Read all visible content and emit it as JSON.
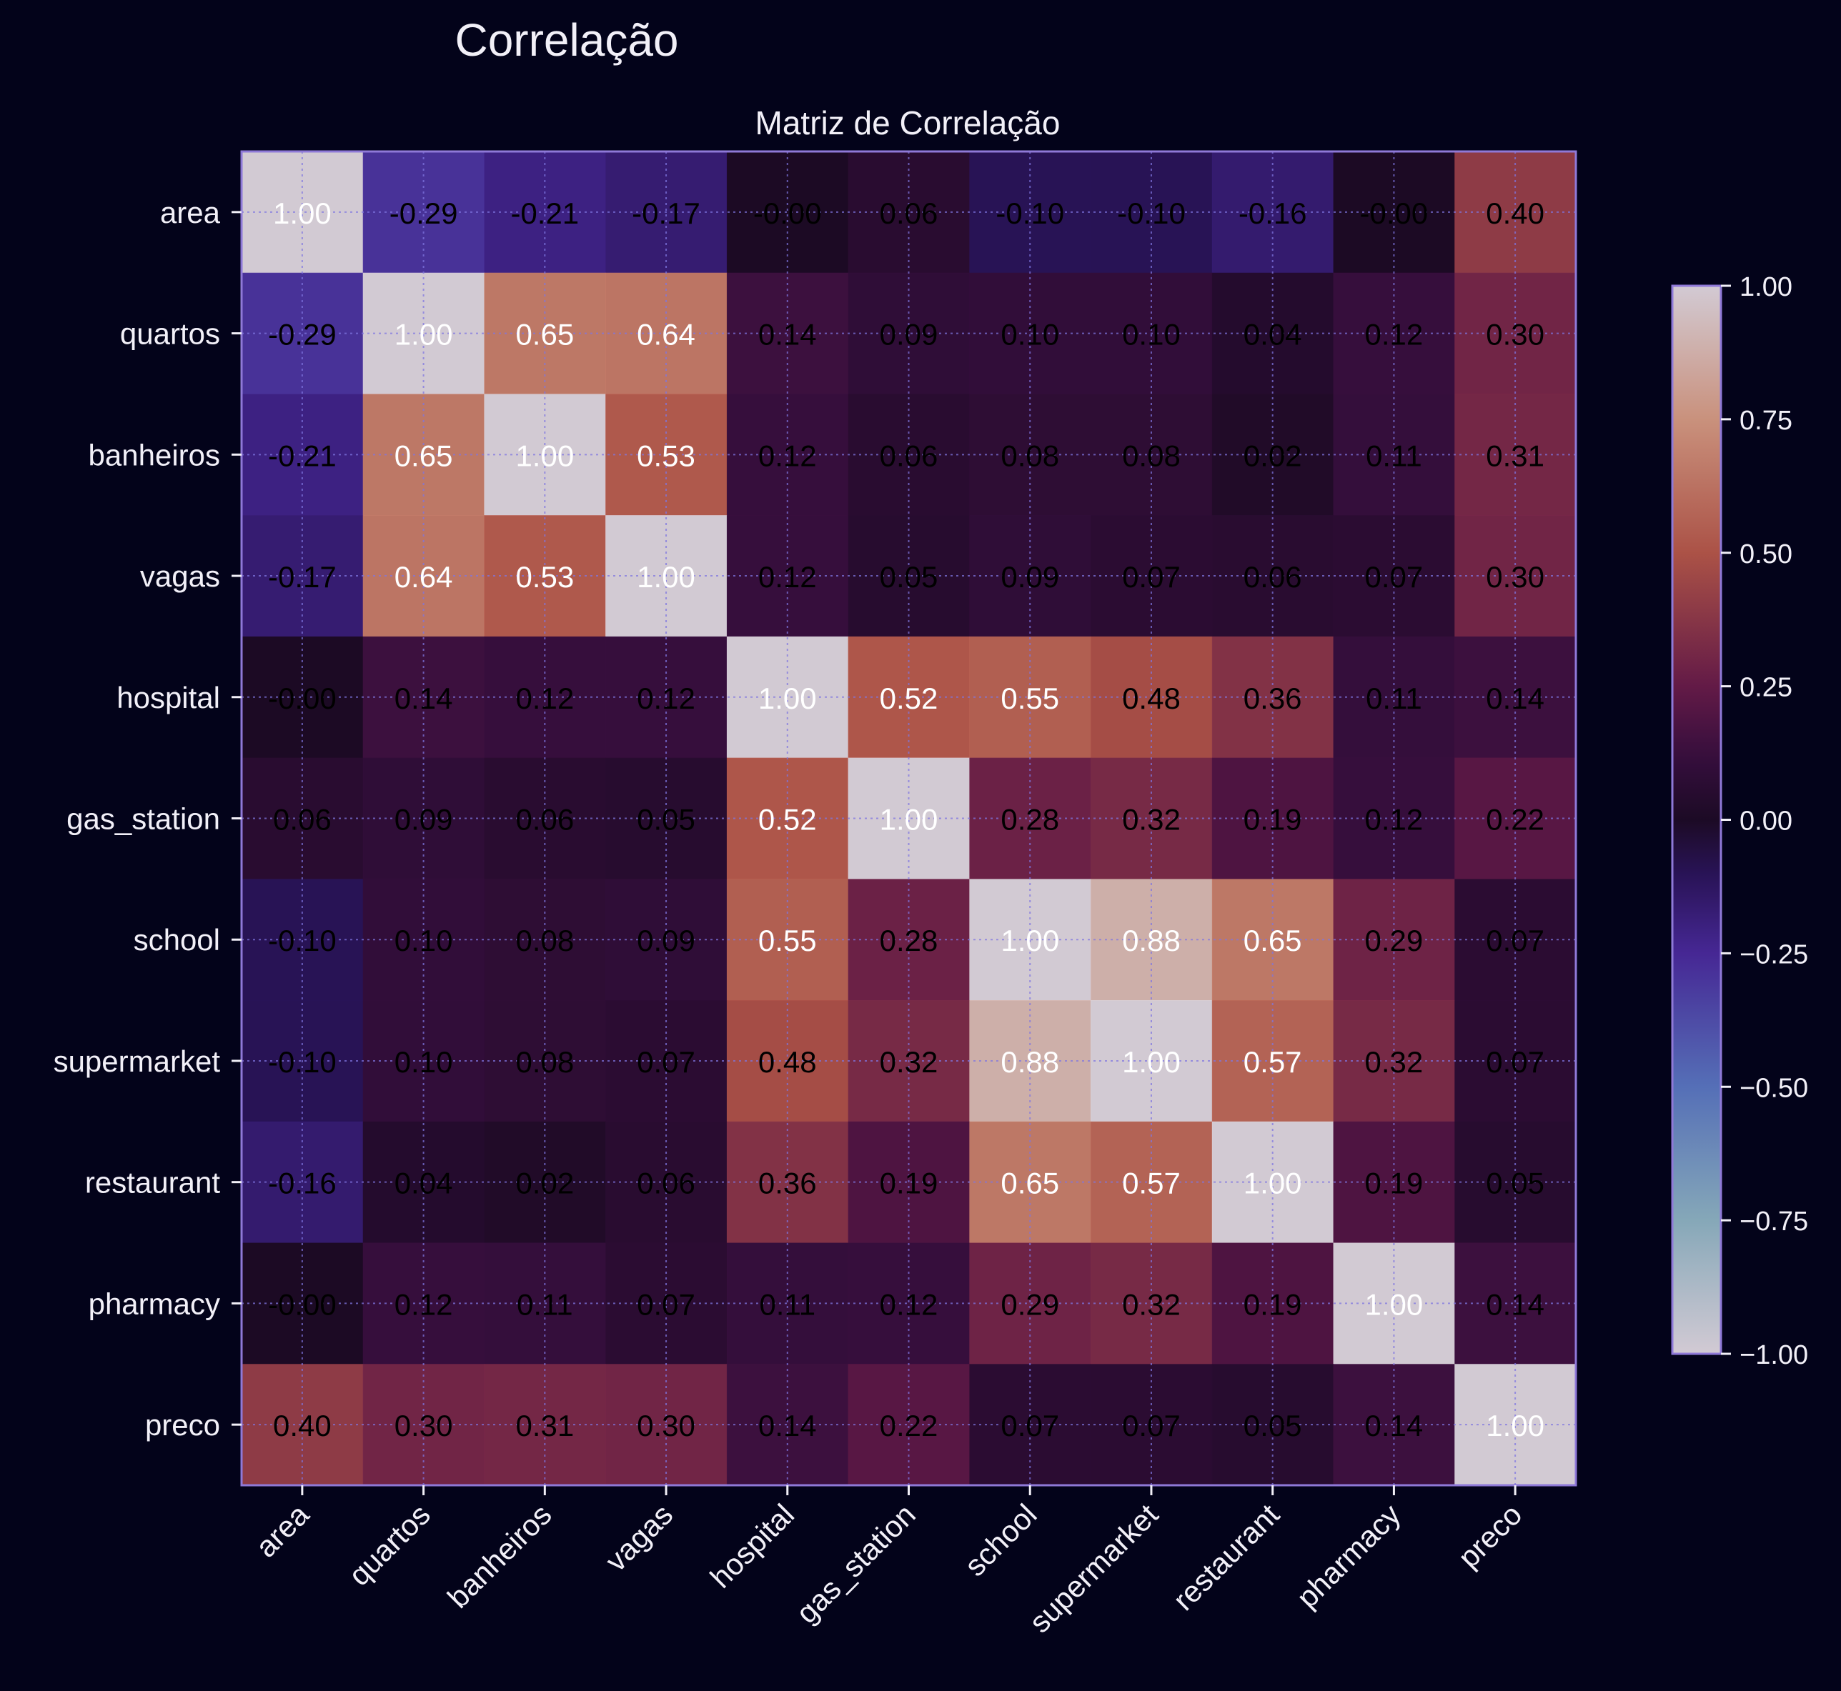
{
  "figure": {
    "suptitle": "Correlação",
    "background": "#03031a",
    "text_color": "#f2f0f8",
    "frame_color": "#8f79d8",
    "grid_color": "#7f76e0"
  },
  "chart_data": {
    "type": "heatmap",
    "title": "Matriz de Correlação",
    "xlabel": "",
    "ylabel": "",
    "grid": true,
    "value_format": "2 decimals",
    "variables": [
      "area",
      "quartos",
      "banheiros",
      "vagas",
      "hospital",
      "gas_station",
      "school",
      "supermarket",
      "restaurant",
      "pharmacy",
      "preco"
    ],
    "matrix": [
      [
        1.0,
        -0.29,
        -0.21,
        -0.17,
        -0.0,
        0.06,
        -0.1,
        -0.1,
        -0.16,
        -0.0,
        0.4
      ],
      [
        -0.29,
        1.0,
        0.65,
        0.64,
        0.14,
        0.09,
        0.1,
        0.1,
        0.04,
        0.12,
        0.3
      ],
      [
        -0.21,
        0.65,
        1.0,
        0.53,
        0.12,
        0.06,
        0.08,
        0.08,
        0.02,
        0.11,
        0.31
      ],
      [
        -0.17,
        0.64,
        0.53,
        1.0,
        0.12,
        0.05,
        0.09,
        0.07,
        0.06,
        0.07,
        0.3
      ],
      [
        -0.0,
        0.14,
        0.12,
        0.12,
        1.0,
        0.52,
        0.55,
        0.48,
        0.36,
        0.11,
        0.14
      ],
      [
        0.06,
        0.09,
        0.06,
        0.05,
        0.52,
        1.0,
        0.28,
        0.32,
        0.19,
        0.12,
        0.22
      ],
      [
        -0.1,
        0.1,
        0.08,
        0.09,
        0.55,
        0.28,
        1.0,
        0.88,
        0.65,
        0.29,
        0.07
      ],
      [
        -0.1,
        0.1,
        0.08,
        0.07,
        0.48,
        0.32,
        0.88,
        1.0,
        0.57,
        0.32,
        0.07
      ],
      [
        -0.16,
        0.04,
        0.02,
        0.06,
        0.36,
        0.19,
        0.65,
        0.57,
        1.0,
        0.19,
        0.05
      ],
      [
        -0.0,
        0.12,
        0.11,
        0.07,
        0.11,
        0.12,
        0.29,
        0.32,
        0.19,
        1.0,
        0.14
      ],
      [
        0.4,
        0.3,
        0.31,
        0.3,
        0.14,
        0.22,
        0.07,
        0.07,
        0.05,
        0.14,
        1.0
      ]
    ],
    "colorbar": {
      "range": [
        -1.0,
        1.0
      ],
      "ticks": [
        1.0,
        0.75,
        0.5,
        0.25,
        0.0,
        -0.25,
        -0.5,
        -0.75,
        -1.0
      ],
      "tick_labels": [
        "1.00",
        "0.75",
        "0.50",
        "0.25",
        "0.00",
        "−0.25",
        "−0.50",
        "−0.75",
        "−1.00"
      ]
    },
    "colormap": "twilight",
    "colormap_stops": [
      {
        "v": -1.0,
        "color": "#e2d9e2"
      },
      {
        "v": -0.75,
        "color": "#8fb4c4"
      },
      {
        "v": -0.5,
        "color": "#5b77c3"
      },
      {
        "v": -0.25,
        "color": "#4b2a9d"
      },
      {
        "v": -0.1,
        "color": "#2b145a"
      },
      {
        "v": 0.0,
        "color": "#1e0b26"
      },
      {
        "v": 0.12,
        "color": "#3a0f40"
      },
      {
        "v": 0.25,
        "color": "#6a1c4a"
      },
      {
        "v": 0.5,
        "color": "#b8584a"
      },
      {
        "v": 0.75,
        "color": "#d89c84"
      },
      {
        "v": 1.0,
        "color": "#e2d9e2"
      }
    ]
  }
}
